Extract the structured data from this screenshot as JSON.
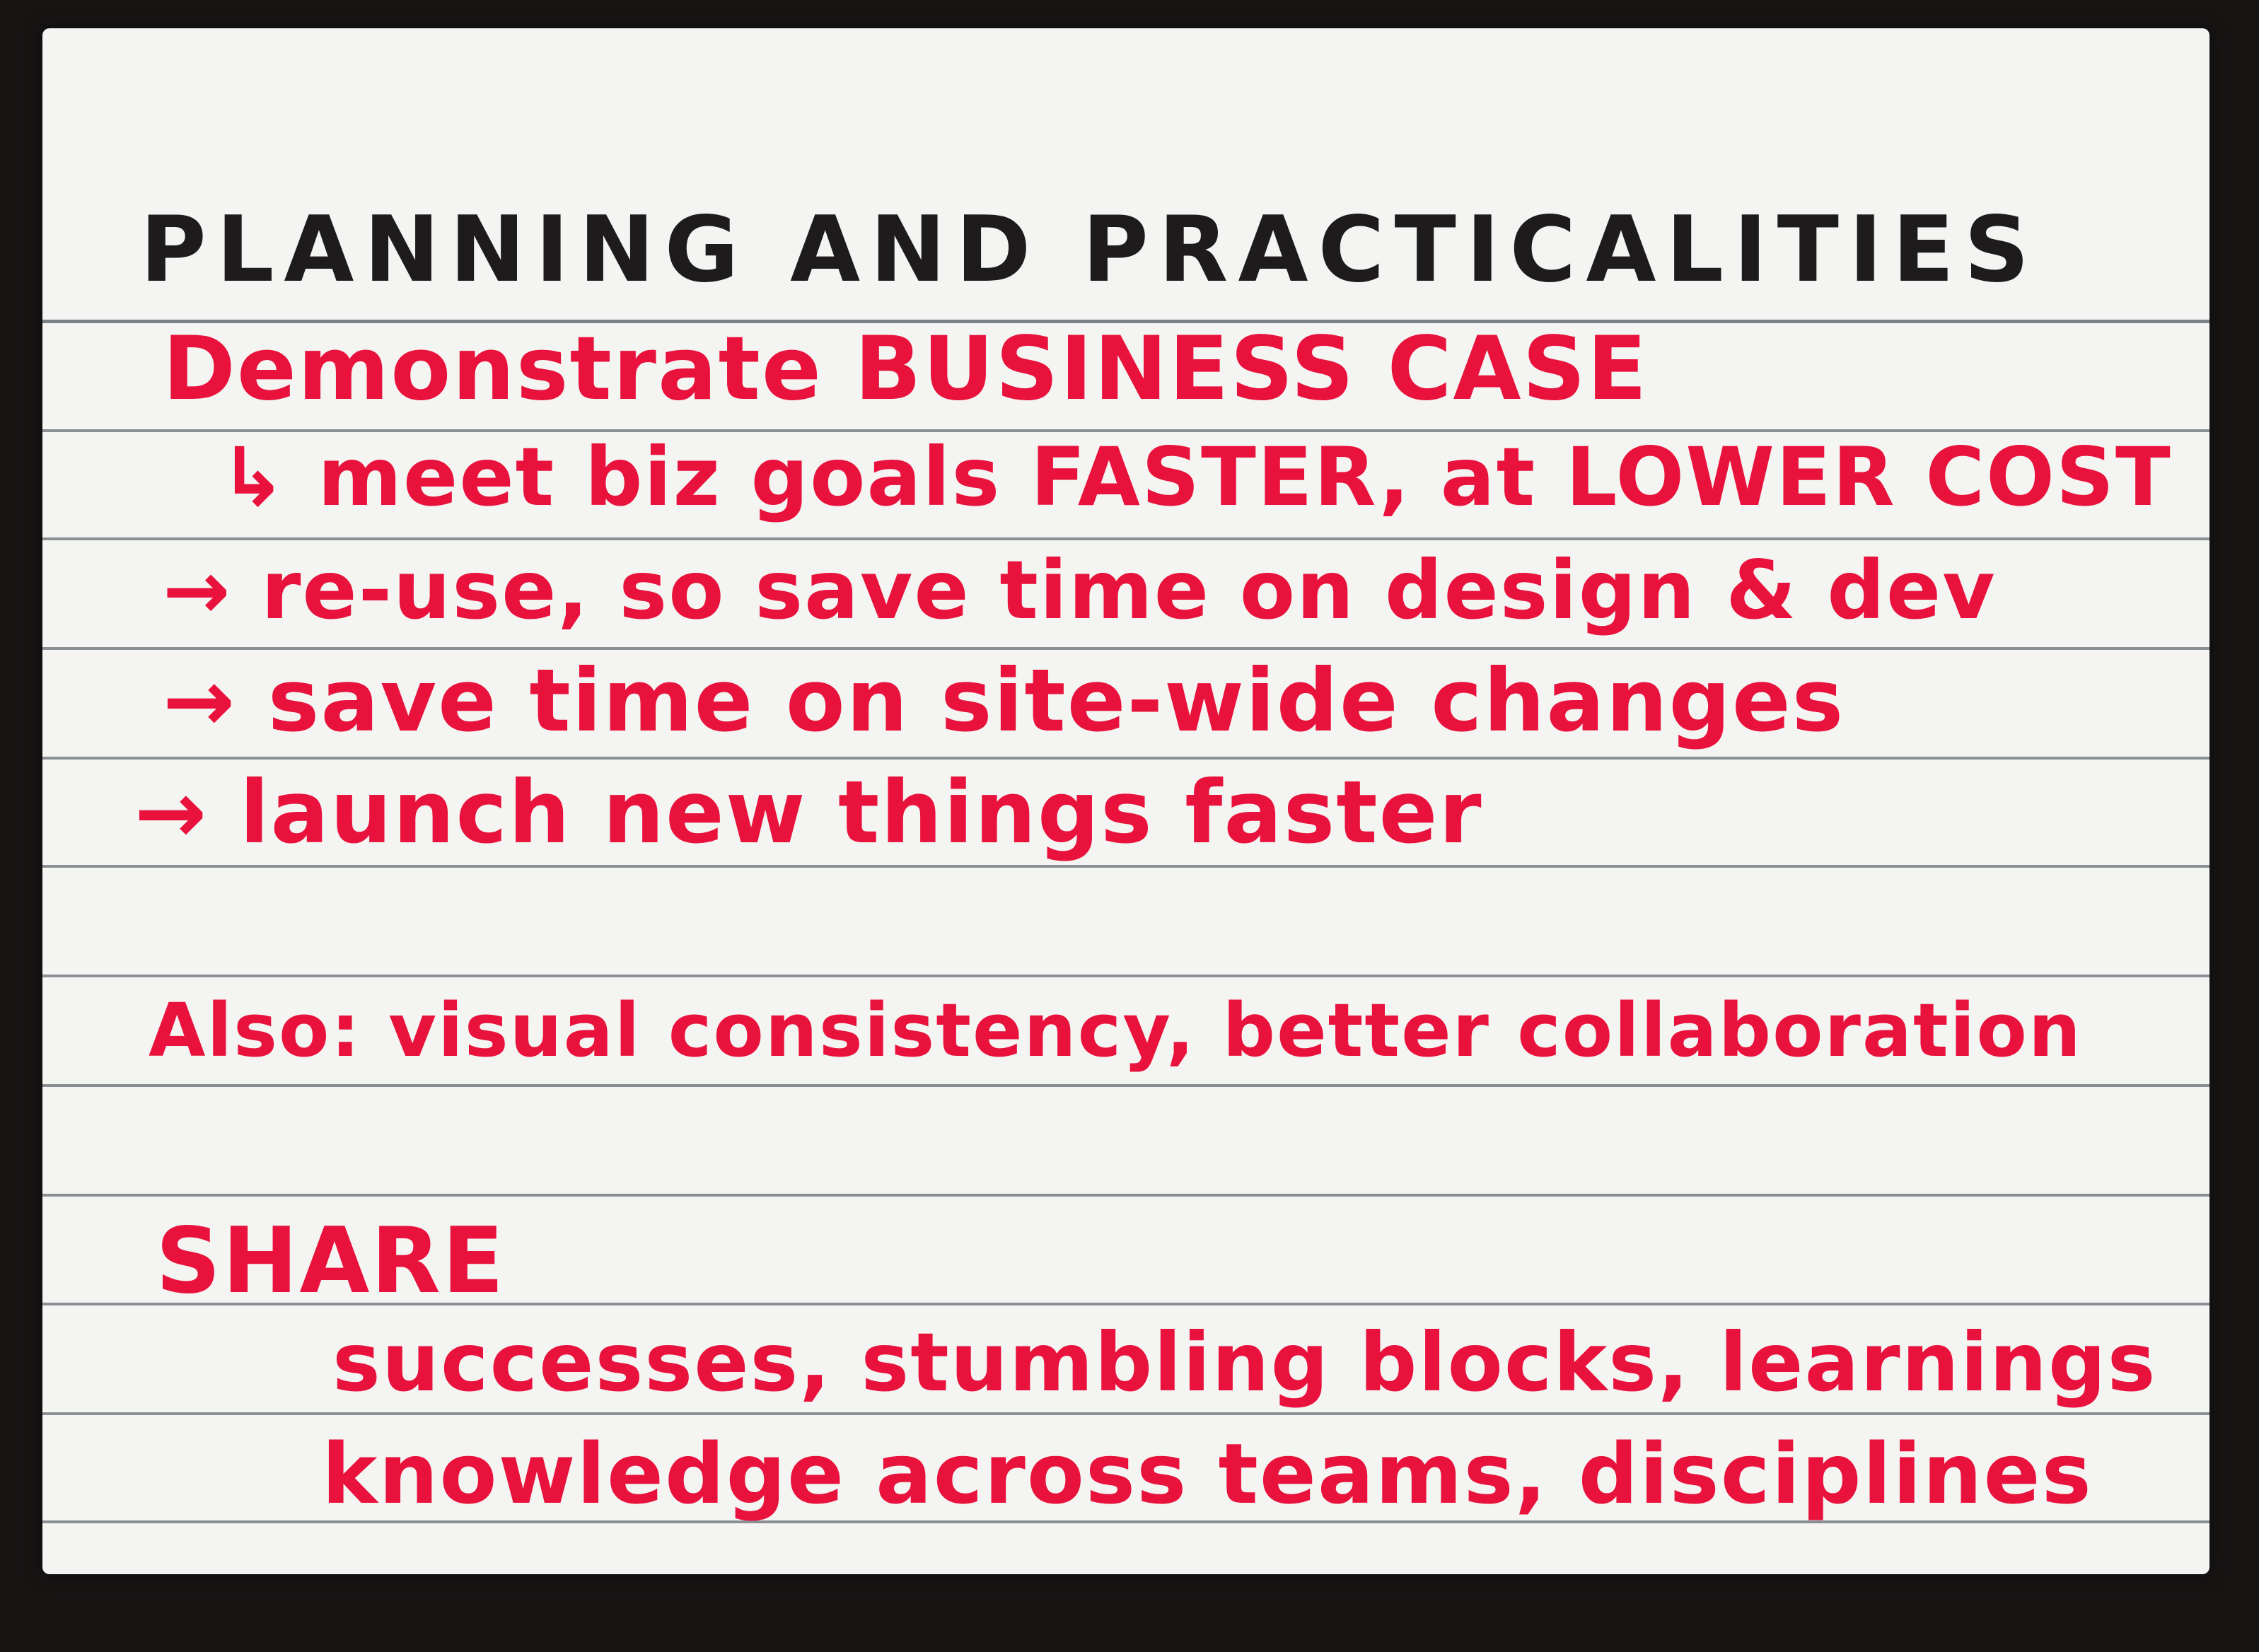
{
  "card": {
    "title": "PLANNING AND PRACTICALITIES",
    "lines": [
      "Demonstrate BUSINESS CASE",
      "↳ meet biz goals FASTER, at LOWER COST",
      "→ re-use, so save time on design & dev",
      "→ save time on site-wide changes",
      "→ launch new things faster",
      "Also: visual consistency, better collaboration",
      "SHARE",
      "successes, stumbling blocks, learnings",
      "knowledge across teams, disciplines"
    ]
  },
  "colors": {
    "background": "#171414",
    "paper": "#f4f4f2",
    "rule_lines": "#8a8f96",
    "title_ink": "#1e1b1c",
    "body_ink": "#e8123c"
  }
}
